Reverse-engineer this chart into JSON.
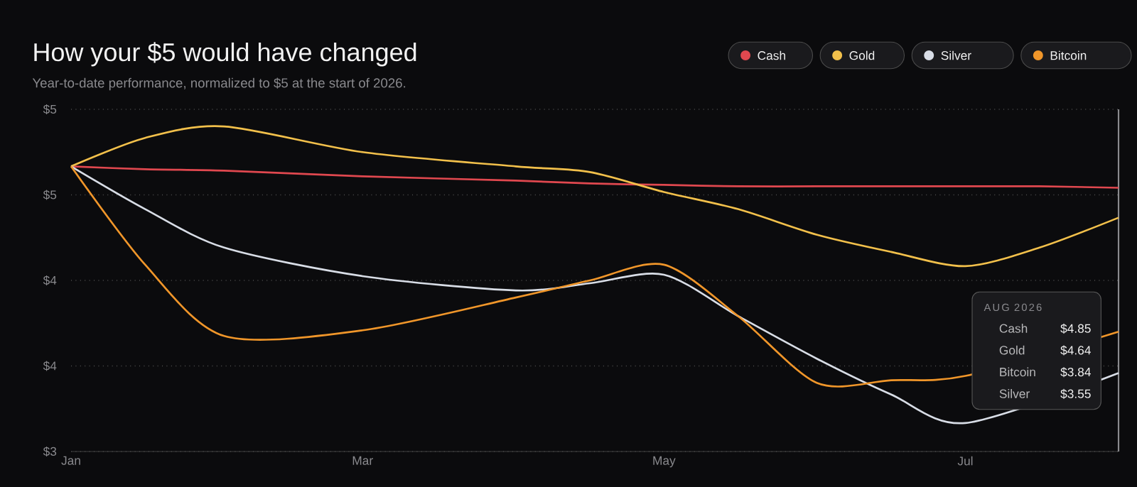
{
  "chart_data": {
    "type": "line",
    "title": "How your $5 would have changed",
    "subtitle": "Year-to-date performance, normalized to $5 at the start of 2026.",
    "x": [
      "2026-01-01",
      "2026-01-16",
      "2026-02-01",
      "2026-03-01",
      "2026-04-01",
      "2026-04-16",
      "2026-05-01",
      "2026-05-16",
      "2026-06-01",
      "2026-06-16",
      "2026-07-01",
      "2026-07-16",
      "2026-08-01"
    ],
    "series": [
      {
        "name": "Cash",
        "color": "#e0484f",
        "values": [
          5.0,
          4.98,
          4.97,
          4.93,
          4.9,
          4.88,
          4.87,
          4.86,
          4.86,
          4.86,
          4.86,
          4.86,
          4.85
        ]
      },
      {
        "name": "Gold",
        "color": "#f2c04b",
        "values": [
          5.0,
          5.2,
          5.28,
          5.1,
          5.0,
          4.96,
          4.82,
          4.7,
          4.52,
          4.4,
          4.3,
          4.43,
          4.64
        ]
      },
      {
        "name": "Silver",
        "color": "#d8dde6",
        "values": [
          5.0,
          4.7,
          4.43,
          4.23,
          4.13,
          4.18,
          4.24,
          3.95,
          3.65,
          3.4,
          3.2,
          null,
          3.55
        ]
      },
      {
        "name": "Bitcoin",
        "color": "#f0962a",
        "values": [
          5.0,
          4.31,
          3.81,
          3.85,
          4.08,
          4.2,
          4.31,
          3.95,
          3.48,
          3.5,
          3.53,
          null,
          3.84
        ]
      }
    ],
    "xlim": [
      "2026-01-01",
      "2026-08-01"
    ],
    "xticks": [
      {
        "value": "2026-01-01",
        "label": "Jan"
      },
      {
        "value": "2026-03-01",
        "label": "Mar"
      },
      {
        "value": "2026-05-01",
        "label": "May"
      },
      {
        "value": "2026-07-01",
        "label": "Jul"
      }
    ],
    "ylim": [
      3,
      5.4
    ],
    "yticks": [
      {
        "value": 3,
        "label": "$3"
      },
      {
        "value": 3.6,
        "label": "$4"
      },
      {
        "value": 4.2,
        "label": "$4"
      },
      {
        "value": 4.8,
        "label": "$5"
      },
      {
        "value": 5.4,
        "label": "$5"
      }
    ],
    "grid": "y",
    "legend": "top right",
    "marker": "none",
    "line_style": "solid",
    "ref_lines": [
      {
        "axis": "x",
        "value": "2026-08-01",
        "color": "#8a8a8e"
      }
    ],
    "annotations": [
      "AUG 2026",
      "Cash",
      "$4.85",
      "Gold",
      "$4.64",
      "Bitcoin",
      "$3.84",
      "Silver",
      "$3.55"
    ]
  }
}
